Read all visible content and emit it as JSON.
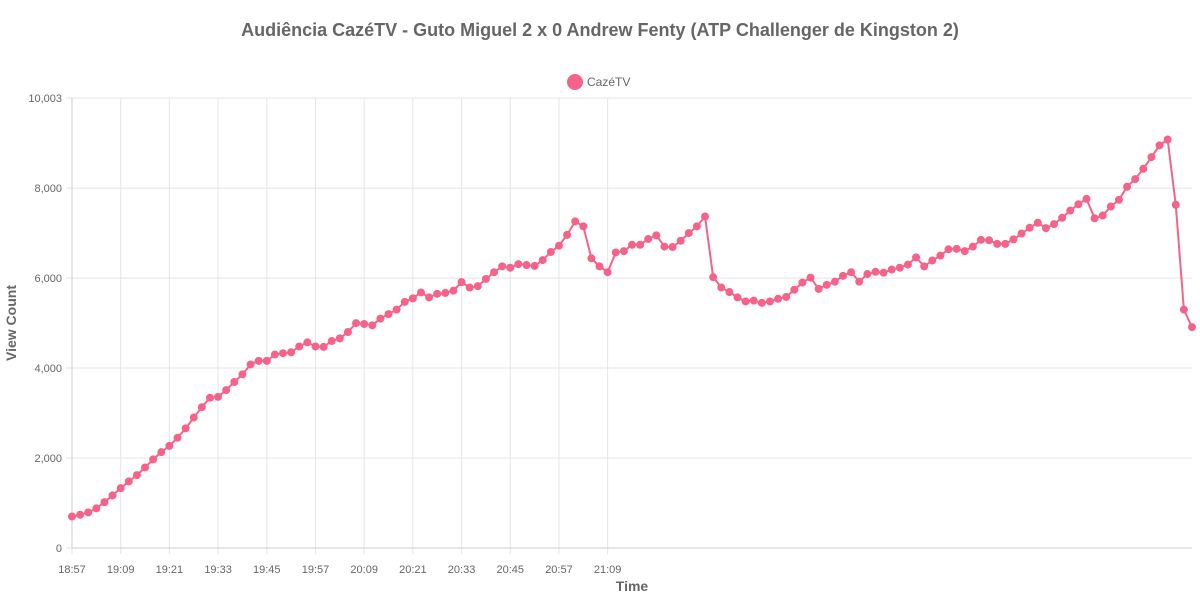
{
  "chart_data": {
    "type": "line",
    "title": "Audiência CazéTV - Guto Miguel 2 x 0 Andrew Fenty (ATP Challenger de Kingston 2)",
    "xlabel": "Time",
    "ylabel": "View Count",
    "ylim": [
      0,
      10003
    ],
    "y_ticks": [
      0,
      2000,
      4000,
      6000,
      8000,
      10003
    ],
    "y_tick_labels": [
      "0",
      "2,000",
      "4,000",
      "6,000",
      "8,000",
      "10,003"
    ],
    "x_ticks": [
      "18:57",
      "19:09",
      "19:21",
      "19:33",
      "19:45",
      "19:57",
      "20:09",
      "20:21",
      "20:33",
      "20:45",
      "20:57",
      "21:09"
    ],
    "grid": true,
    "legend_position": "top",
    "series": [
      {
        "name": "CazéTV",
        "color": "#f5628a",
        "values": [
          700,
          740,
          790,
          880,
          1020,
          1170,
          1330,
          1480,
          1620,
          1790,
          1970,
          2130,
          2270,
          2450,
          2660,
          2900,
          3130,
          3340,
          3360,
          3510,
          3690,
          3860,
          4080,
          4160,
          4160,
          4300,
          4330,
          4350,
          4480,
          4570,
          4480,
          4470,
          4600,
          4660,
          4800,
          5000,
          4980,
          4950,
          5100,
          5200,
          5300,
          5470,
          5550,
          5680,
          5570,
          5650,
          5670,
          5720,
          5910,
          5790,
          5820,
          5980,
          6130,
          6260,
          6230,
          6310,
          6290,
          6270,
          6400,
          6580,
          6720,
          6960,
          7260,
          7150,
          6440,
          6260,
          6130,
          6570,
          6600,
          6740,
          6740,
          6870,
          6950,
          6700,
          6690,
          6830,
          7000,
          7150,
          7370,
          6020,
          5790,
          5690,
          5570,
          5480,
          5500,
          5450,
          5480,
          5540,
          5580,
          5740,
          5900,
          6010,
          5760,
          5850,
          5920,
          6050,
          6130,
          5920,
          6090,
          6140,
          6120,
          6190,
          6230,
          6300,
          6460,
          6260,
          6390,
          6500,
          6640,
          6650,
          6600,
          6700,
          6850,
          6840,
          6760,
          6760,
          6860,
          6990,
          7120,
          7230,
          7110,
          7200,
          7340,
          7500,
          7640,
          7760,
          7330,
          7390,
          7590,
          7740,
          8030,
          8200,
          8430,
          8690,
          8950,
          9080,
          7630,
          5300,
          4910
        ]
      }
    ]
  }
}
